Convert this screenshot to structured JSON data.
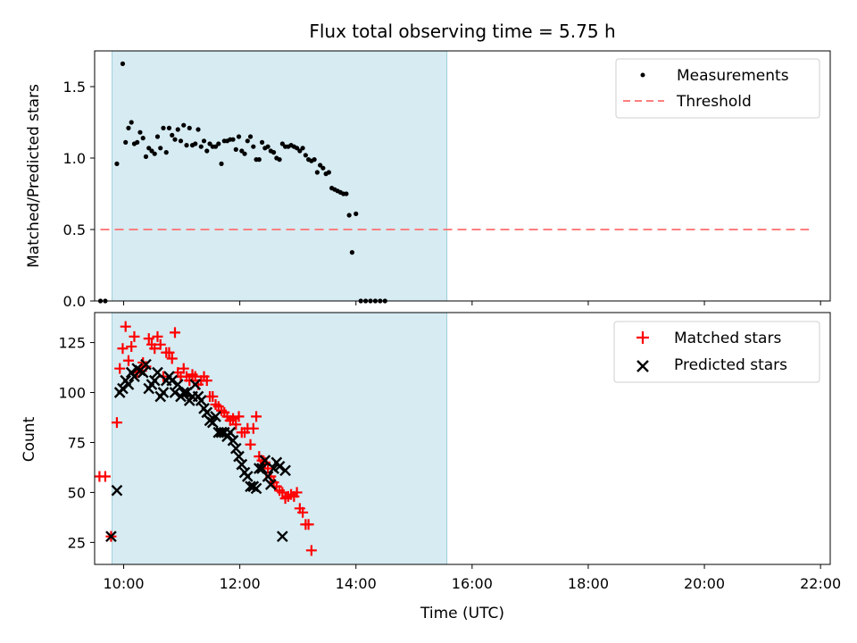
{
  "title": "Flux total observing time = 5.75 h",
  "colors": {
    "shade": "#add8e6",
    "measurements": "#000000",
    "threshold": "#ff7f7f",
    "matched": "#ff0000",
    "predicted": "#000000"
  },
  "chart_data": [
    {
      "type": "scatter",
      "ylabel": "Matched/Predicted stars",
      "ylim": [
        0,
        1.75
      ],
      "xlim": [
        "09:30",
        "22:10"
      ],
      "yticks": [
        "0.0",
        "0.5",
        "1.0",
        "1.5"
      ],
      "shaded_span": [
        "09:48",
        "15:34"
      ],
      "threshold_line": {
        "y": 0.5,
        "x_range": [
          "09:36",
          "21:48"
        ]
      },
      "legend": {
        "position": "upper right",
        "entries": [
          "Measurements",
          "Threshold"
        ]
      },
      "series": [
        {
          "name": "Measurements",
          "marker": "dot",
          "points": [
            [
              "09:36",
              0.0
            ],
            [
              "09:41",
              0.0
            ],
            [
              "09:53",
              0.96
            ],
            [
              "09:59",
              1.66
            ],
            [
              "10:02",
              1.11
            ],
            [
              "10:05",
              1.21
            ],
            [
              "10:08",
              1.25
            ],
            [
              "10:11",
              1.1
            ],
            [
              "10:14",
              1.11
            ],
            [
              "10:17",
              1.18
            ],
            [
              "10:20",
              1.14
            ],
            [
              "10:23",
              1.01
            ],
            [
              "10:26",
              1.07
            ],
            [
              "10:29",
              1.05
            ],
            [
              "10:32",
              1.03
            ],
            [
              "10:35",
              1.15
            ],
            [
              "10:38",
              1.07
            ],
            [
              "10:41",
              1.21
            ],
            [
              "10:44",
              1.04
            ],
            [
              "10:47",
              1.21
            ],
            [
              "10:50",
              1.16
            ],
            [
              "10:53",
              1.13
            ],
            [
              "10:56",
              1.2
            ],
            [
              "10:59",
              1.12
            ],
            [
              "11:02",
              1.23
            ],
            [
              "11:05",
              1.09
            ],
            [
              "11:08",
              1.21
            ],
            [
              "11:11",
              1.09
            ],
            [
              "11:14",
              1.1
            ],
            [
              "11:17",
              1.2
            ],
            [
              "11:20",
              1.08
            ],
            [
              "11:23",
              1.12
            ],
            [
              "11:26",
              1.05
            ],
            [
              "11:29",
              1.1
            ],
            [
              "11:32",
              1.08
            ],
            [
              "11:35",
              1.08
            ],
            [
              "11:38",
              1.1
            ],
            [
              "11:41",
              0.96
            ],
            [
              "11:44",
              1.12
            ],
            [
              "11:47",
              1.12
            ],
            [
              "11:50",
              1.13
            ],
            [
              "11:53",
              1.13
            ],
            [
              "11:56",
              1.06
            ],
            [
              "11:59",
              1.15
            ],
            [
              "12:02",
              1.05
            ],
            [
              "12:05",
              1.03
            ],
            [
              "12:08",
              1.12
            ],
            [
              "12:11",
              1.15
            ],
            [
              "12:14",
              1.08
            ],
            [
              "12:17",
              0.99
            ],
            [
              "12:20",
              0.99
            ],
            [
              "12:23",
              1.11
            ],
            [
              "12:26",
              1.07
            ],
            [
              "12:29",
              1.08
            ],
            [
              "12:32",
              1.05
            ],
            [
              "12:35",
              1.04
            ],
            [
              "12:38",
              1.0
            ],
            [
              "12:41",
              0.99
            ],
            [
              "12:44",
              1.1
            ],
            [
              "12:47",
              1.08
            ],
            [
              "12:50",
              1.08
            ],
            [
              "12:53",
              1.09
            ],
            [
              "12:56",
              1.08
            ],
            [
              "12:59",
              1.07
            ],
            [
              "13:02",
              1.05
            ],
            [
              "13:05",
              1.07
            ],
            [
              "13:08",
              1.02
            ],
            [
              "13:11",
              0.99
            ],
            [
              "13:14",
              0.98
            ],
            [
              "13:17",
              0.99
            ],
            [
              "13:20",
              0.9
            ],
            [
              "13:23",
              0.95
            ],
            [
              "13:26",
              0.93
            ],
            [
              "13:29",
              0.89
            ],
            [
              "13:32",
              0.9
            ],
            [
              "13:35",
              0.79
            ],
            [
              "13:38",
              0.78
            ],
            [
              "13:41",
              0.77
            ],
            [
              "13:44",
              0.76
            ],
            [
              "13:47",
              0.75
            ],
            [
              "13:50",
              0.75
            ],
            [
              "13:53",
              0.6
            ],
            [
              "13:56",
              0.34
            ],
            [
              "14:00",
              0.61
            ],
            [
              "14:05",
              0.0
            ],
            [
              "14:10",
              0.0
            ],
            [
              "14:15",
              0.0
            ],
            [
              "14:20",
              0.0
            ],
            [
              "14:25",
              0.0
            ],
            [
              "14:30",
              0.0
            ]
          ]
        }
      ]
    },
    {
      "type": "scatter",
      "xlabel": "Time (UTC)",
      "ylabel": "Count",
      "ylim": [
        14,
        140
      ],
      "xlim": [
        "09:30",
        "22:10"
      ],
      "xticks": [
        "10:00",
        "12:00",
        "14:00",
        "16:00",
        "18:00",
        "20:00",
        "22:00"
      ],
      "yticks": [
        "25",
        "50",
        "75",
        "100",
        "125"
      ],
      "shaded_span": [
        "09:48",
        "15:34"
      ],
      "legend": {
        "position": "upper right",
        "entries": [
          "Matched stars",
          "Predicted stars"
        ]
      },
      "series": [
        {
          "name": "Matched stars",
          "marker": "plus",
          "points": [
            [
              "09:35",
              58
            ],
            [
              "09:41",
              58
            ],
            [
              "09:47",
              28
            ],
            [
              "09:53",
              85
            ],
            [
              "09:56",
              112
            ],
            [
              "09:59",
              122
            ],
            [
              "10:02",
              133
            ],
            [
              "10:05",
              116
            ],
            [
              "10:08",
              123
            ],
            [
              "10:11",
              128
            ],
            [
              "10:14",
              110
            ],
            [
              "10:17",
              111
            ],
            [
              "10:20",
              115
            ],
            [
              "10:23",
              113
            ],
            [
              "10:26",
              127
            ],
            [
              "10:29",
              124
            ],
            [
              "10:32",
              122
            ],
            [
              "10:35",
              128
            ],
            [
              "10:38",
              124
            ],
            [
              "10:41",
              108
            ],
            [
              "10:44",
              120
            ],
            [
              "10:47",
              120
            ],
            [
              "10:50",
              117
            ],
            [
              "10:53",
              130
            ],
            [
              "10:56",
              110
            ],
            [
              "10:59",
              108
            ],
            [
              "11:02",
              112
            ],
            [
              "11:05",
              108
            ],
            [
              "11:08",
              106
            ],
            [
              "11:11",
              109
            ],
            [
              "11:14",
              108
            ],
            [
              "11:17",
              104
            ],
            [
              "11:20",
              106
            ],
            [
              "11:23",
              108
            ],
            [
              "11:26",
              106
            ],
            [
              "11:29",
              98
            ],
            [
              "11:32",
              98
            ],
            [
              "11:35",
              94
            ],
            [
              "11:38",
              93
            ],
            [
              "11:41",
              91
            ],
            [
              "11:44",
              90
            ],
            [
              "11:47",
              88
            ],
            [
              "11:50",
              86
            ],
            [
              "11:53",
              87
            ],
            [
              "11:56",
              84
            ],
            [
              "11:59",
              88
            ],
            [
              "12:02",
              80
            ],
            [
              "12:05",
              80
            ],
            [
              "12:08",
              82
            ],
            [
              "12:11",
              74
            ],
            [
              "12:14",
              82
            ],
            [
              "12:17",
              88
            ],
            [
              "12:20",
              68
            ],
            [
              "12:23",
              66
            ],
            [
              "12:26",
              65
            ],
            [
              "12:29",
              62
            ],
            [
              "12:32",
              58
            ],
            [
              "12:35",
              55
            ],
            [
              "12:38",
              53
            ],
            [
              "12:41",
              51
            ],
            [
              "12:44",
              50
            ],
            [
              "12:47",
              47
            ],
            [
              "12:50",
              48
            ],
            [
              "12:53",
              49
            ],
            [
              "12:56",
              48
            ],
            [
              "12:59",
              50
            ],
            [
              "13:02",
              42
            ],
            [
              "13:05",
              40
            ],
            [
              "13:08",
              34
            ],
            [
              "13:11",
              34
            ],
            [
              "13:14",
              21
            ]
          ]
        },
        {
          "name": "Predicted stars",
          "marker": "x",
          "points": [
            [
              "09:47",
              28
            ],
            [
              "09:53",
              51
            ],
            [
              "09:56",
              100
            ],
            [
              "09:59",
              102
            ],
            [
              "10:02",
              106
            ],
            [
              "10:05",
              104
            ],
            [
              "10:08",
              110
            ],
            [
              "10:11",
              108
            ],
            [
              "10:14",
              112
            ],
            [
              "10:17",
              111
            ],
            [
              "10:20",
              110
            ],
            [
              "10:23",
              114
            ],
            [
              "10:26",
              102
            ],
            [
              "10:29",
              104
            ],
            [
              "10:32",
              106
            ],
            [
              "10:35",
              110
            ],
            [
              "10:38",
              98
            ],
            [
              "10:41",
              100
            ],
            [
              "10:44",
              106
            ],
            [
              "10:47",
              108
            ],
            [
              "10:50",
              106
            ],
            [
              "10:53",
              100
            ],
            [
              "10:56",
              104
            ],
            [
              "10:59",
              98
            ],
            [
              "11:02",
              100
            ],
            [
              "11:05",
              100
            ],
            [
              "11:08",
              96
            ],
            [
              "11:11",
              98
            ],
            [
              "11:14",
              104
            ],
            [
              "11:17",
              98
            ],
            [
              "11:20",
              96
            ],
            [
              "11:23",
              92
            ],
            [
              "11:26",
              90
            ],
            [
              "11:29",
              86
            ],
            [
              "11:32",
              85
            ],
            [
              "11:35",
              88
            ],
            [
              "11:38",
              80
            ],
            [
              "11:41",
              80
            ],
            [
              "11:44",
              80
            ],
            [
              "11:47",
              78
            ],
            [
              "11:50",
              80
            ],
            [
              "11:53",
              76
            ],
            [
              "11:56",
              72
            ],
            [
              "11:59",
              68
            ],
            [
              "12:02",
              64
            ],
            [
              "12:05",
              60
            ],
            [
              "12:08",
              58
            ],
            [
              "12:11",
              53
            ],
            [
              "12:14",
              53
            ],
            [
              "12:17",
              52
            ],
            [
              "12:20",
              62
            ],
            [
              "12:23",
              62
            ],
            [
              "12:26",
              66
            ],
            [
              "12:29",
              58
            ],
            [
              "12:32",
              54
            ],
            [
              "12:35",
              62
            ],
            [
              "12:38",
              65
            ],
            [
              "12:41",
              63
            ],
            [
              "12:44",
              28
            ],
            [
              "12:47",
              61
            ]
          ]
        }
      ]
    }
  ]
}
